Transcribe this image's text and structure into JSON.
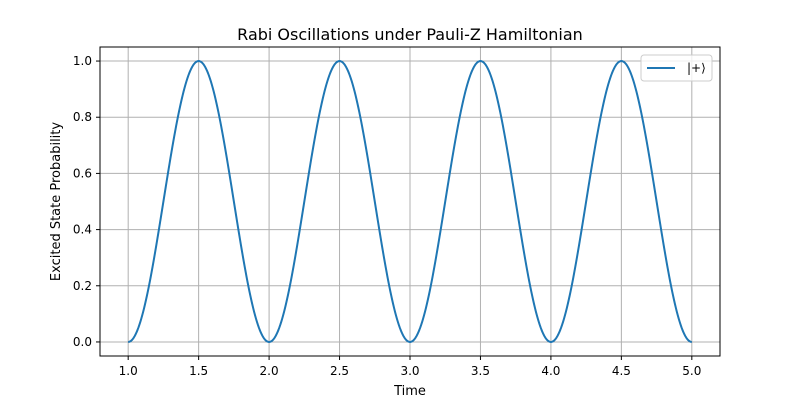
{
  "chart_data": {
    "type": "line",
    "title": "Rabi Oscillations under Pauli-Z Hamiltonian",
    "xlabel": "Time",
    "ylabel": "Excited State Probability",
    "xlim": [
      0.8,
      5.2
    ],
    "ylim": [
      -0.05,
      1.05
    ],
    "x_ticks": [
      1.0,
      1.5,
      2.0,
      2.5,
      3.0,
      3.5,
      4.0,
      4.5,
      5.0
    ],
    "x_tick_labels": [
      "1.0",
      "1.5",
      "2.0",
      "2.5",
      "3.0",
      "3.5",
      "4.0",
      "4.5",
      "5.0"
    ],
    "y_ticks": [
      0.0,
      0.2,
      0.4,
      0.6,
      0.8,
      1.0
    ],
    "y_tick_labels": [
      "0.0",
      "0.2",
      "0.4",
      "0.6",
      "0.8",
      "1.0"
    ],
    "grid": true,
    "legend_position": "top-right",
    "series": [
      {
        "name": "|+⟩",
        "color": "#1f77b4",
        "function": "sin^2(pi * t)",
        "x": [
          1.0,
          1.1,
          1.2,
          1.3,
          1.4,
          1.5,
          1.6,
          1.7,
          1.8,
          1.9,
          2.0,
          2.1,
          2.2,
          2.3,
          2.4,
          2.5,
          2.6,
          2.7,
          2.8,
          2.9,
          3.0,
          3.1,
          3.2,
          3.3,
          3.4,
          3.5,
          3.6,
          3.7,
          3.8,
          3.9,
          4.0,
          4.1,
          4.2,
          4.3,
          4.4,
          4.5,
          4.6,
          4.7,
          4.8,
          4.9,
          5.0
        ],
        "y": [
          0.0,
          0.095,
          0.345,
          0.655,
          0.905,
          1.0,
          0.905,
          0.655,
          0.345,
          0.095,
          0.0,
          0.095,
          0.345,
          0.655,
          0.905,
          1.0,
          0.905,
          0.655,
          0.345,
          0.095,
          0.0,
          0.095,
          0.345,
          0.655,
          0.905,
          1.0,
          0.905,
          0.655,
          0.345,
          0.095,
          0.0,
          0.095,
          0.345,
          0.655,
          0.905,
          1.0,
          0.905,
          0.655,
          0.345,
          0.095,
          0.0
        ]
      }
    ]
  }
}
